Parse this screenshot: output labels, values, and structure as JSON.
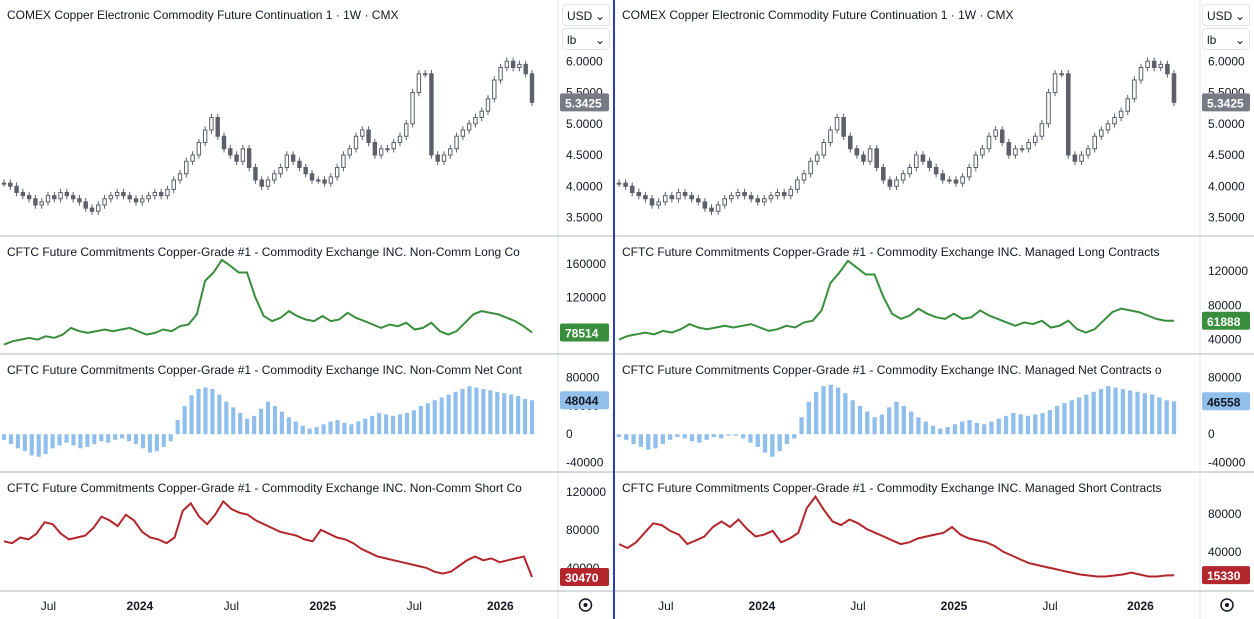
{
  "panels": [
    {
      "id": "left",
      "header": {
        "currency": "USD",
        "unit": "lb"
      },
      "chart_data": [
        {
          "type": "candlestick",
          "title": "COMEX Copper Electronic Commodity Future Continuation 1 · 1W · CMX",
          "y_ticks": [
            "6.0000",
            "5.5000",
            "5.0000",
            "4.5000",
            "4.0000",
            "3.5000"
          ],
          "ylim": [
            3.3,
            6.5
          ],
          "last_value": "5.3425",
          "color": "#5d606b",
          "values": [
            4.05,
            4.0,
            3.9,
            3.85,
            3.8,
            3.7,
            3.75,
            3.85,
            3.8,
            3.9,
            3.85,
            3.8,
            3.75,
            3.65,
            3.6,
            3.7,
            3.8,
            3.85,
            3.9,
            3.85,
            3.8,
            3.75,
            3.8,
            3.85,
            3.9,
            3.85,
            3.95,
            4.1,
            4.2,
            4.4,
            4.5,
            4.7,
            4.9,
            5.1,
            4.8,
            4.6,
            4.5,
            4.4,
            4.6,
            4.3,
            4.1,
            4.0,
            4.1,
            4.2,
            4.3,
            4.5,
            4.4,
            4.3,
            4.2,
            4.1,
            4.1,
            4.05,
            4.15,
            4.3,
            4.5,
            4.6,
            4.8,
            4.9,
            4.7,
            4.5,
            4.6,
            4.6,
            4.7,
            4.8,
            5.0,
            5.5,
            5.8,
            5.8,
            4.5,
            4.4,
            4.5,
            4.6,
            4.8,
            4.9,
            5.0,
            5.1,
            5.2,
            5.4,
            5.7,
            5.9,
            6.0,
            5.9,
            5.95,
            5.8,
            5.3425
          ]
        },
        {
          "type": "line",
          "title": "CFTC Future Commitments Copper-Grade #1 - Commodity Exchange INC. Non-Comm Long Co",
          "y_ticks": [
            "160000",
            "120000"
          ],
          "ylim": [
            60000,
            172000
          ],
          "last_value": "78514",
          "color": "#388e3c",
          "values": [
            64000,
            68000,
            70000,
            72000,
            70000,
            74000,
            72000,
            76000,
            84000,
            80000,
            78000,
            80000,
            82000,
            80000,
            82000,
            84000,
            80000,
            76000,
            78000,
            82000,
            80000,
            86000,
            88000,
            100000,
            140000,
            150000,
            165000,
            158000,
            150000,
            150000,
            120000,
            98000,
            92000,
            96000,
            104000,
            98000,
            94000,
            92000,
            98000,
            92000,
            94000,
            102000,
            96000,
            92000,
            88000,
            84000,
            88000,
            86000,
            90000,
            82000,
            84000,
            90000,
            80000,
            76000,
            80000,
            90000,
            100000,
            104000,
            102000,
            100000,
            96000,
            92000,
            86000,
            78514
          ]
        },
        {
          "type": "bar",
          "title": "CFTC Future Commitments Copper-Grade #1 - Commodity Exchange INC. Non-Comm Net Cont",
          "y_ticks": [
            "80000",
            "40000",
            "0",
            "-40000"
          ],
          "ylim": [
            -45000,
            88000
          ],
          "last_value": "48044",
          "color": "#90bfec",
          "values": [
            -8000,
            -14000,
            -20000,
            -24000,
            -30000,
            -32000,
            -28000,
            -20000,
            -16000,
            -12000,
            -16000,
            -20000,
            -18000,
            -14000,
            -10000,
            -12000,
            -8000,
            -6000,
            -10000,
            -14000,
            -20000,
            -26000,
            -24000,
            -18000,
            -10000,
            20000,
            40000,
            55000,
            64000,
            66000,
            64000,
            56000,
            46000,
            38000,
            30000,
            22000,
            26000,
            36000,
            46000,
            40000,
            32000,
            24000,
            18000,
            12000,
            8000,
            10000,
            14000,
            18000,
            20000,
            16000,
            14000,
            18000,
            22000,
            26000,
            30000,
            28000,
            26000,
            28000,
            30000,
            34000,
            40000,
            44000,
            48000,
            52000,
            56000,
            60000,
            64000,
            68000,
            66000,
            64000,
            62000,
            60000,
            58000,
            56000,
            54000,
            50000,
            48044
          ]
        },
        {
          "type": "line",
          "title": "CFTC Future Commitments Copper-Grade #1 - Commodity Exchange INC. Non-Comm Short Co",
          "y_ticks": [
            "120000",
            "80000",
            "40000"
          ],
          "ylim": [
            22000,
            122000
          ],
          "last_value": "30470",
          "color": "#b2262c",
          "values": [
            68000,
            66000,
            72000,
            70000,
            76000,
            88000,
            86000,
            76000,
            70000,
            72000,
            74000,
            82000,
            94000,
            90000,
            84000,
            96000,
            90000,
            78000,
            72000,
            70000,
            66000,
            72000,
            100000,
            108000,
            94000,
            86000,
            96000,
            110000,
            102000,
            98000,
            96000,
            90000,
            86000,
            82000,
            78000,
            76000,
            74000,
            70000,
            68000,
            80000,
            76000,
            72000,
            70000,
            66000,
            60000,
            56000,
            52000,
            50000,
            48000,
            46000,
            44000,
            42000,
            40000,
            36000,
            34000,
            36000,
            42000,
            48000,
            52000,
            48000,
            50000,
            46000,
            48000,
            50000,
            52000,
            30470
          ]
        }
      ],
      "x_ticks": [
        "Jul",
        "2024",
        "Jul",
        "2025",
        "Jul",
        "2026"
      ]
    },
    {
      "id": "right",
      "header": {
        "currency": "USD",
        "unit": "lb"
      },
      "chart_data": [
        {
          "type": "candlestick",
          "title": "COMEX Copper Electronic Commodity Future Continuation 1 · 1W · CMX",
          "y_ticks": [
            "6.0000",
            "5.5000",
            "5.0000",
            "4.5000",
            "4.0000",
            "3.5000"
          ],
          "ylim": [
            3.3,
            6.5
          ],
          "last_value": "5.3425",
          "color": "#5d606b",
          "values": [
            4.05,
            4.0,
            3.9,
            3.85,
            3.8,
            3.7,
            3.75,
            3.85,
            3.8,
            3.9,
            3.85,
            3.8,
            3.75,
            3.65,
            3.6,
            3.7,
            3.8,
            3.85,
            3.9,
            3.85,
            3.8,
            3.75,
            3.8,
            3.85,
            3.9,
            3.85,
            3.95,
            4.1,
            4.2,
            4.4,
            4.5,
            4.7,
            4.9,
            5.1,
            4.8,
            4.6,
            4.5,
            4.4,
            4.6,
            4.3,
            4.1,
            4.0,
            4.1,
            4.2,
            4.3,
            4.5,
            4.4,
            4.3,
            4.2,
            4.1,
            4.1,
            4.05,
            4.15,
            4.3,
            4.5,
            4.6,
            4.8,
            4.9,
            4.7,
            4.5,
            4.6,
            4.6,
            4.7,
            4.8,
            5.0,
            5.5,
            5.8,
            5.8,
            4.5,
            4.4,
            4.5,
            4.6,
            4.8,
            4.9,
            5.0,
            5.1,
            5.2,
            5.4,
            5.7,
            5.9,
            6.0,
            5.9,
            5.95,
            5.8,
            5.3425
          ]
        },
        {
          "type": "line",
          "title": "CFTC Future Commitments Copper-Grade #1 - Commodity Exchange INC. Managed Long Contracts",
          "y_ticks": [
            "120000",
            "80000",
            "40000"
          ],
          "ylim": [
            30000,
            140000
          ],
          "last_value": "61888",
          "color": "#388e3c",
          "values": [
            40000,
            44000,
            46000,
            48000,
            46000,
            50000,
            48000,
            52000,
            58000,
            54000,
            52000,
            54000,
            56000,
            54000,
            56000,
            58000,
            54000,
            50000,
            52000,
            56000,
            54000,
            60000,
            62000,
            74000,
            106000,
            118000,
            132000,
            124000,
            116000,
            116000,
            90000,
            70000,
            64000,
            68000,
            76000,
            70000,
            66000,
            64000,
            70000,
            64000,
            66000,
            74000,
            68000,
            64000,
            60000,
            56000,
            60000,
            58000,
            62000,
            54000,
            56000,
            62000,
            52000,
            48000,
            52000,
            62000,
            72000,
            76000,
            74000,
            72000,
            68000,
            64000,
            62000,
            61888
          ]
        },
        {
          "type": "bar",
          "title": "CFTC Future Commitments Copper-Grade #1 - Commodity Exchange INC. Managed Net Contracts o",
          "y_ticks": [
            "80000",
            "40000",
            "0",
            "-40000"
          ],
          "ylim": [
            -45000,
            88000
          ],
          "last_value": "46558",
          "color": "#90bfec",
          "values": [
            -4000,
            -8000,
            -14000,
            -18000,
            -22000,
            -20000,
            -14000,
            -8000,
            -4000,
            -6000,
            -10000,
            -12000,
            -8000,
            -4000,
            -6000,
            -2000,
            -2000,
            -6000,
            -12000,
            -18000,
            -26000,
            -32000,
            -24000,
            -14000,
            -6000,
            24000,
            46000,
            60000,
            68000,
            70000,
            66000,
            58000,
            48000,
            40000,
            32000,
            24000,
            28000,
            38000,
            46000,
            40000,
            32000,
            24000,
            18000,
            12000,
            8000,
            10000,
            14000,
            18000,
            20000,
            16000,
            14000,
            18000,
            22000,
            26000,
            30000,
            28000,
            26000,
            28000,
            30000,
            34000,
            40000,
            44000,
            48000,
            52000,
            56000,
            60000,
            64000,
            68000,
            66000,
            64000,
            62000,
            60000,
            58000,
            56000,
            52000,
            48000,
            46558
          ]
        },
        {
          "type": "line",
          "title": "CFTC Future Commitments Copper-Grade #1 - Commodity Exchange INC. Managed Short Contracts",
          "y_ticks": [
            "80000",
            "40000"
          ],
          "ylim": [
            5000,
            105000
          ],
          "last_value": "15330",
          "color": "#b2262c",
          "values": [
            48000,
            44000,
            50000,
            60000,
            70000,
            68000,
            62000,
            58000,
            48000,
            52000,
            56000,
            66000,
            72000,
            66000,
            74000,
            64000,
            56000,
            58000,
            62000,
            50000,
            54000,
            60000,
            86000,
            98000,
            84000,
            72000,
            68000,
            74000,
            70000,
            64000,
            60000,
            56000,
            52000,
            48000,
            50000,
            54000,
            56000,
            58000,
            60000,
            66000,
            58000,
            54000,
            52000,
            50000,
            46000,
            40000,
            36000,
            32000,
            28000,
            26000,
            24000,
            22000,
            20000,
            18000,
            16000,
            15000,
            14000,
            14000,
            15000,
            16000,
            18000,
            16000,
            14000,
            14000,
            15000,
            15330
          ]
        }
      ],
      "x_ticks": [
        "Jul",
        "2024",
        "Jul",
        "2025",
        "Jul",
        "2026"
      ]
    }
  ]
}
